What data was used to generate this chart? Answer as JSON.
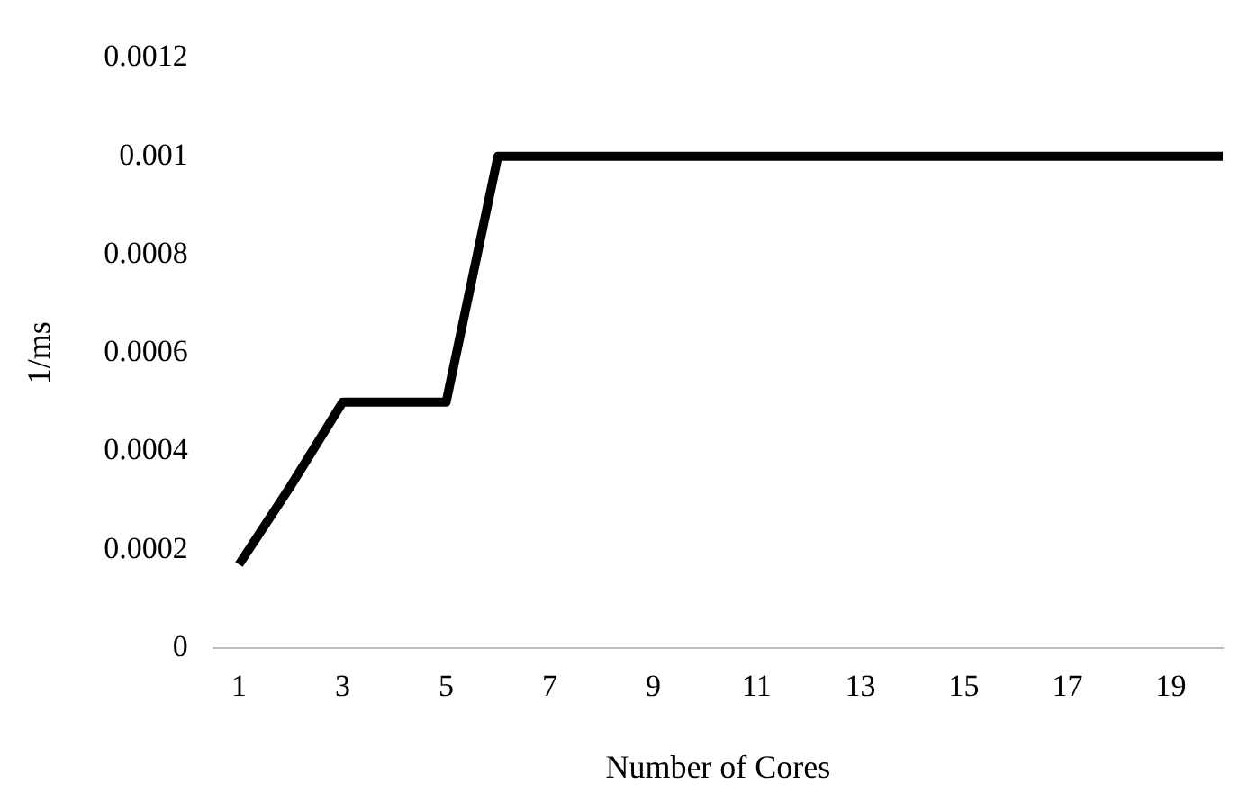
{
  "chart_data": {
    "type": "line",
    "xlabel": "Number of Cores",
    "ylabel": "1/ms",
    "x": [
      1,
      2,
      3,
      4,
      5,
      6,
      7,
      8,
      9,
      10,
      11,
      12,
      13,
      14,
      15,
      16,
      17,
      18,
      19,
      20
    ],
    "series": [
      {
        "color": "#000000",
        "values": [
          0.00017,
          0.00033,
          0.0005,
          0.0005,
          0.0005,
          0.001,
          0.001,
          0.001,
          0.001,
          0.001,
          0.001,
          0.001,
          0.001,
          0.001,
          0.001,
          0.001,
          0.001,
          0.001,
          0.001,
          0.001
        ]
      }
    ],
    "xlim": [
      0.5,
      20
    ],
    "xticks": [
      1,
      3,
      5,
      7,
      9,
      11,
      13,
      15,
      17,
      19
    ],
    "ylim": [
      0,
      0.0012
    ],
    "yticks": [
      0,
      0.0002,
      0.0004,
      0.0006,
      0.0008,
      0.001,
      0.0012
    ],
    "grid": false,
    "legend": false,
    "marker": "none",
    "line_style": "solid"
  }
}
